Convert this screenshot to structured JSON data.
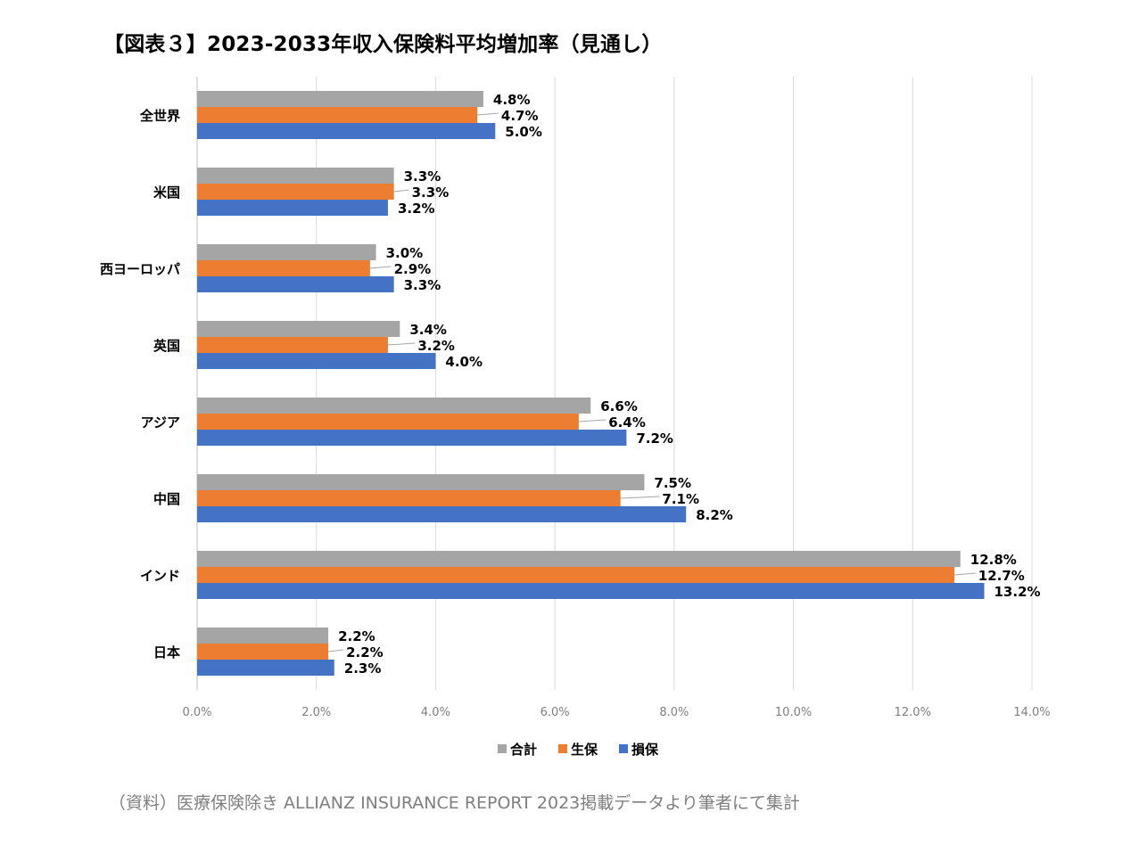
{
  "title": "【図表３】2023-2033年収入保険料平均増加率（見通し）",
  "source_note": "（資料）医療保険除き ALLIANZ INSURANCE REPORT 2023掲載データより筆者にて集計",
  "chart_data": {
    "type": "bar",
    "orientation": "horizontal",
    "categories": [
      "全世界",
      "米国",
      "西ヨーロッパ",
      "英国",
      "アジア",
      "中国",
      "インド",
      "日本"
    ],
    "series": [
      {
        "name": "合計",
        "color": "#a5a5a5",
        "values": [
          4.8,
          3.3,
          3.0,
          3.4,
          6.6,
          7.5,
          12.8,
          2.2
        ],
        "labels": [
          "4.8%",
          "3.3%",
          "3.0%",
          "3.4%",
          "6.6%",
          "7.5%",
          "12.8%",
          "2.2%"
        ]
      },
      {
        "name": "生保",
        "color": "#ed7d31",
        "values": [
          4.7,
          3.3,
          2.9,
          3.2,
          6.4,
          7.1,
          12.7,
          2.2
        ],
        "labels": [
          "4.7%",
          "3.3%",
          "2.9%",
          "3.2%",
          "6.4%",
          "7.1%",
          "12.7%",
          "2.2%"
        ]
      },
      {
        "name": "損保",
        "color": "#4472c4",
        "values": [
          5.0,
          3.2,
          3.3,
          4.0,
          7.2,
          8.2,
          13.2,
          2.3
        ],
        "labels": [
          "5.0%",
          "3.2%",
          "3.3%",
          "4.0%",
          "7.2%",
          "8.2%",
          "13.2%",
          "2.3%"
        ]
      }
    ],
    "xlim": [
      0,
      14
    ],
    "x_ticks": [
      0,
      2,
      4,
      6,
      8,
      10,
      12,
      14
    ],
    "x_tick_labels": [
      "0.0%",
      "2.0%",
      "4.0%",
      "6.0%",
      "8.0%",
      "10.0%",
      "12.0%",
      "14.0%"
    ],
    "grid": true,
    "legend_position": "bottom"
  }
}
